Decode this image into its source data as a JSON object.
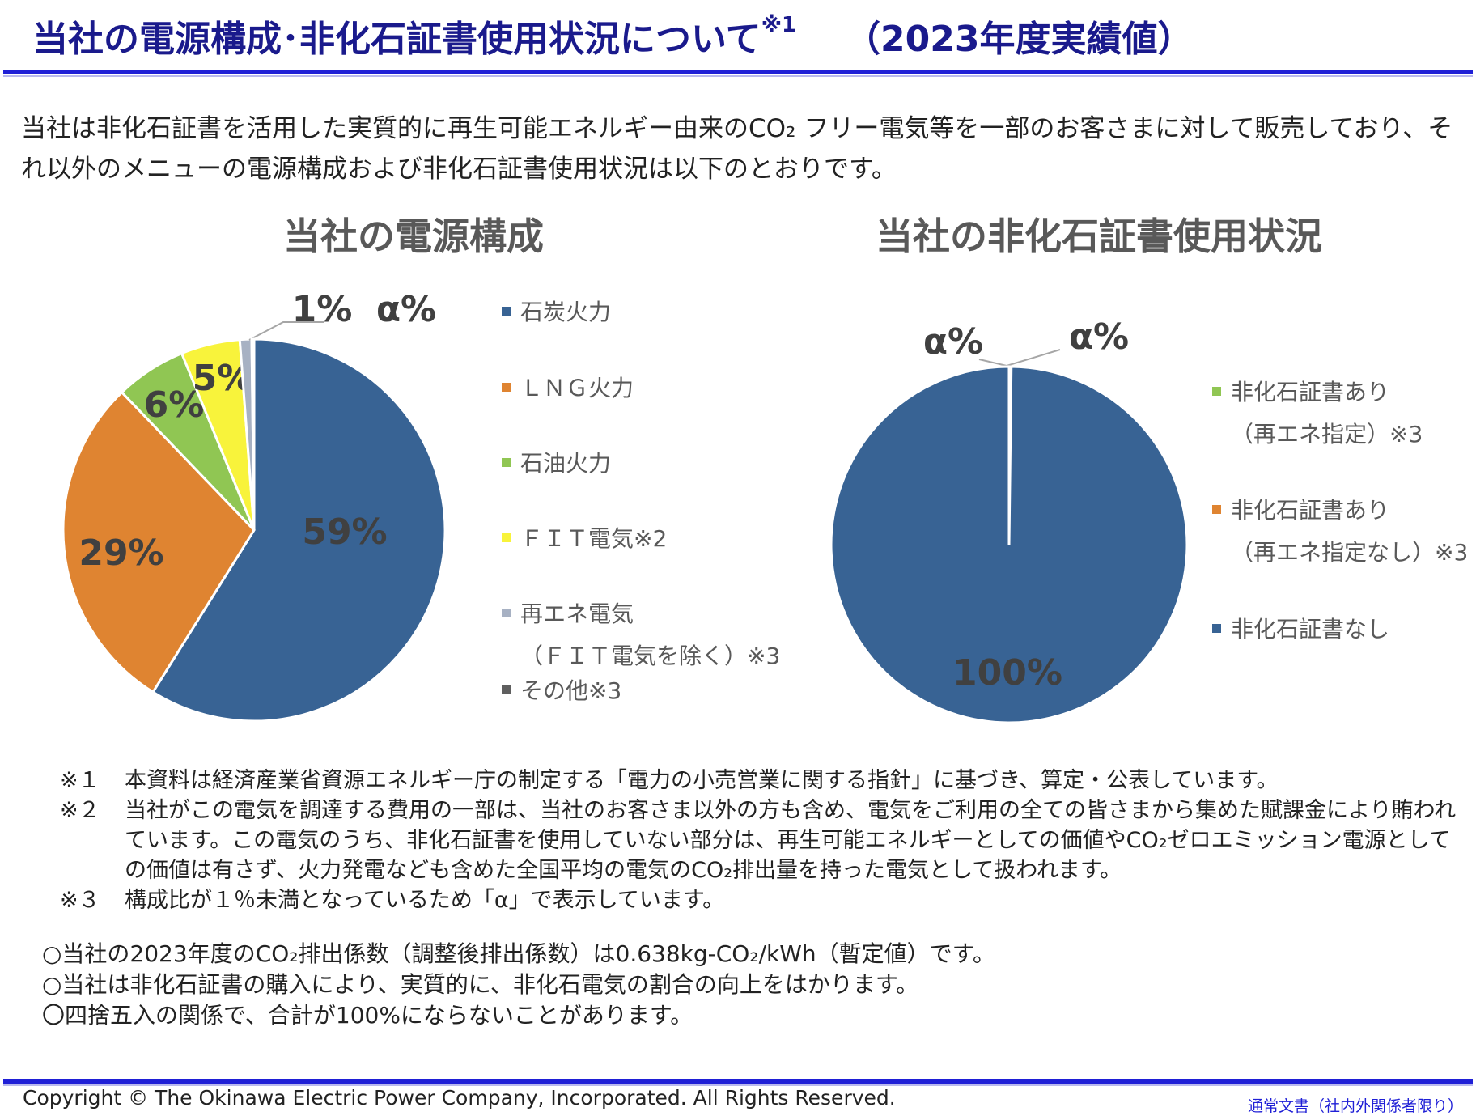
{
  "header": {
    "title": "当社の電源構成･非化石証書使用状況について",
    "title_note": "※1",
    "title_year": "（2023年度実績値）"
  },
  "intro": "当社は非化石証書を活用した実質的に再生可能エネルギー由来のCO₂ フリー電気等を一部のお客さまに対して販売しており、それ以外のメニューの電源構成および非化石証書使用状況は以下のとおりです。",
  "chart_data": [
    {
      "type": "pie",
      "title": "当社の電源構成",
      "labels": [
        "石炭火力",
        "ＬＮＧ火力",
        "石油火力",
        "ＦＩＴ電気※2",
        "再エネ電気（ＦＩＴ電気を除く）※3",
        "その他※3"
      ],
      "values": [
        59,
        29,
        6,
        5,
        1,
        0.2
      ],
      "value_labels": [
        "59%",
        "29%",
        "6%",
        "5%",
        "1%",
        "α%"
      ],
      "colors": [
        "#386394",
        "#df8431",
        "#90c653",
        "#f8f33b",
        "#a7b1c3",
        "#5f5f5f"
      ],
      "legend_position": "right"
    },
    {
      "type": "pie",
      "title": "当社の非化石証書使用状況",
      "labels": [
        "非化石証書あり（再エネ指定）※3",
        "非化石証書あり（再エネ指定なし）※3",
        "非化石証書なし"
      ],
      "values": [
        0.1,
        0.1,
        100
      ],
      "value_labels": [
        "α%",
        "α%",
        "100%"
      ],
      "colors": [
        "#90c653",
        "#df8431",
        "#386394"
      ],
      "legend_position": "right"
    }
  ],
  "legend1": [
    {
      "label": "石炭火力",
      "color": "#386394"
    },
    {
      "label": "ＬＮＧ火力",
      "color": "#df8431"
    },
    {
      "label": "石油火力",
      "color": "#90c653"
    },
    {
      "label": "ＦＩＴ電気※2",
      "color": "#f8f33b"
    },
    {
      "label": "再エネ電気",
      "label2": "（ＦＩＴ電気を除く）※3",
      "color": "#a7b1c3"
    },
    {
      "label": "その他※3",
      "color": "#5f5f5f"
    }
  ],
  "legend2": [
    {
      "label": "非化石証書あり",
      "label2": "（再エネ指定）※3",
      "color": "#90c653"
    },
    {
      "label": "非化石証書あり",
      "label2": "（再エネ指定なし）※3",
      "color": "#df8431"
    },
    {
      "label": "非化石証書なし",
      "color": "#386394"
    }
  ],
  "notes": [
    {
      "mark": "※１",
      "text": "本資料は経済産業省資源エネルギー庁の制定する「電力の小売営業に関する指針」に基づき、算定・公表しています。"
    },
    {
      "mark": "※２",
      "text": "当社がこの電気を調達する費用の一部は、当社のお客さま以外の方も含め、電気をご利用の全ての皆さまから集めた賦課金により賄われています。この電気のうち、非化石証書を使用していない部分は、再生可能エネルギーとしての価値やCO₂ゼロエミッション電源としての価値は有さず、火力発電なども含めた全国平均の電気のCO₂排出量を持った電気として扱われます。"
    },
    {
      "mark": "※３",
      "text": "構成比が１％未満となっているため「α」で表示しています。"
    }
  ],
  "bullets": [
    "○当社の2023年度のCO₂排出係数（調整後排出係数）は0.638kg-CO₂/kWh（暫定値）です。",
    "○当社は非化石証書の購入により、実質的に、非化石電気の割合の向上をはかります。",
    "〇四捨五入の関係で、合計が100%にならないことがあります。"
  ],
  "footer": {
    "copyright": "Copyright © The Okinawa Electric Power Company, Incorporated. All Rights Reserved.",
    "classification": "通常文書（社内外関係者限り）"
  }
}
